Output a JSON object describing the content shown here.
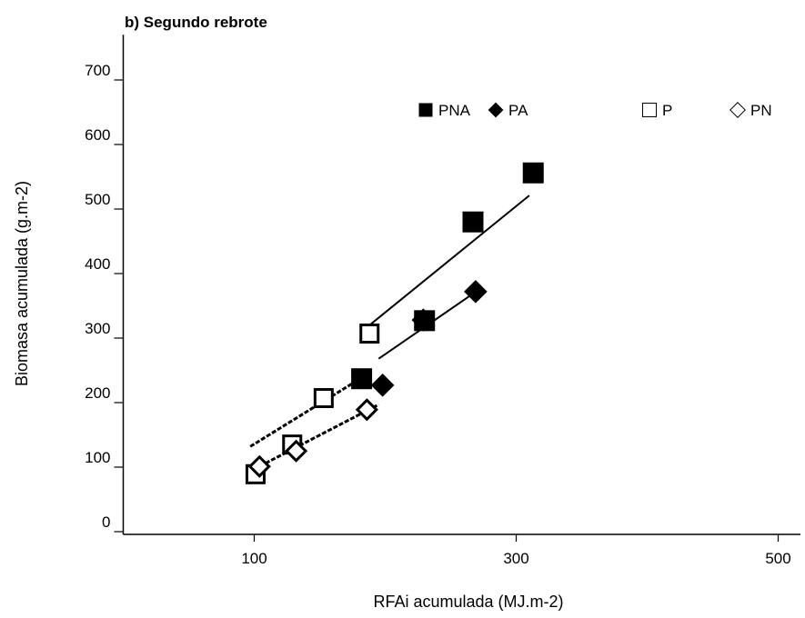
{
  "chart_data": {
    "type": "scatter",
    "title": "b) Segundo rebrote",
    "x_label": "RFAi acumulada (MJ.m-2)",
    "y_label": "Biomasa acumulada (g.m-2)",
    "xlim": [
      0,
      517
    ],
    "ylim": [
      0,
      770
    ],
    "xticks": [
      100,
      300,
      500
    ],
    "yticks": [
      0,
      100,
      200,
      300,
      400,
      500,
      600,
      700
    ],
    "legend": "top-right",
    "series": [
      {
        "name": "PNA",
        "marker": "square",
        "filled": true,
        "color": "#000000",
        "x": [
          182,
          230,
          267,
          313
        ],
        "y": [
          237,
          327,
          480,
          556
        ]
      },
      {
        "name": "PA",
        "marker": "diamond",
        "filled": true,
        "color": "#000000",
        "x": [
          198,
          229,
          269
        ],
        "y": [
          227,
          328,
          372
        ]
      },
      {
        "name": "P",
        "marker": "square",
        "filled": false,
        "color": "#000000",
        "x": [
          101,
          129,
          153,
          188
        ],
        "y": [
          89,
          135,
          207,
          307
        ]
      },
      {
        "name": "PN",
        "marker": "diamond",
        "filled": false,
        "color": "#000000",
        "x": [
          104,
          132,
          186
        ],
        "y": [
          101,
          125,
          189
        ]
      }
    ],
    "trend_lines": [
      {
        "style": "solid",
        "x": [
          188,
          310
        ],
        "y": [
          320,
          521
        ]
      },
      {
        "style": "solid",
        "x": [
          195,
          270
        ],
        "y": [
          268,
          373
        ]
      },
      {
        "style": "dashed",
        "x": [
          97,
          188
        ],
        "y": [
          132,
          246
        ]
      },
      {
        "style": "dashed",
        "x": [
          100,
          195
        ],
        "y": [
          97,
          197
        ]
      }
    ]
  }
}
